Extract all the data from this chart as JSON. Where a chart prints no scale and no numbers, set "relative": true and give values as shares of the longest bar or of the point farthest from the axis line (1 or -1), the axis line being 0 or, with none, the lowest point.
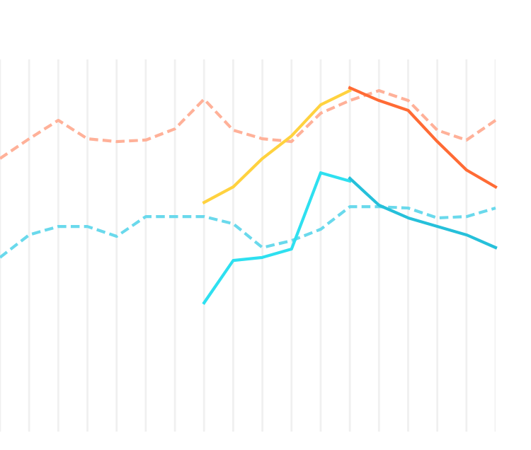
{
  "chart_data": {
    "type": "line",
    "relative": true,
    "grid": "x",
    "marker": "none",
    "categories": [
      null,
      null,
      null,
      null,
      null,
      null,
      null,
      null,
      null,
      null,
      null,
      null,
      null,
      null,
      null,
      null,
      null,
      null
    ],
    "series": [
      {
        "color": "#ffb199",
        "line_style": "dashed",
        "values": [
          0.671,
          0.763,
          0.849,
          0.763,
          0.75,
          0.757,
          0.809,
          0.947,
          0.803,
          0.763,
          0.75,
          0.882,
          0.941,
          0.987,
          0.941,
          0.803,
          0.757,
          0.849
        ]
      },
      {
        "color": "#6ad9ec",
        "line_style": "dashed",
        "values": [
          0.211,
          0.316,
          0.355,
          0.355,
          0.309,
          0.401,
          0.401,
          0.401,
          0.368,
          0.257,
          0.289,
          0.342,
          0.447,
          0.447,
          0.441,
          0.395,
          0.401,
          0.441
        ]
      },
      {
        "color": "#ffd23f",
        "line_style": "solid",
        "values": [
          null,
          null,
          null,
          null,
          null,
          null,
          null,
          0.467,
          0.539,
          0.671,
          0.776,
          0.921,
          0.987,
          null,
          null,
          null,
          null,
          null
        ]
      },
      {
        "color": "#ff6b35",
        "line_style": "solid",
        "values": [
          null,
          null,
          null,
          null,
          null,
          null,
          null,
          null,
          null,
          null,
          null,
          null,
          1.0,
          0.941,
          0.895,
          0.75,
          0.618,
          0.539
        ]
      },
      {
        "color": "#2ee0f0",
        "line_style": "solid",
        "values": [
          null,
          null,
          null,
          null,
          null,
          null,
          null,
          0.0,
          0.197,
          0.211,
          0.25,
          0.605,
          0.566,
          null,
          null,
          null,
          null,
          null
        ]
      },
      {
        "color": "#26c0da",
        "line_style": "solid",
        "values": [
          null,
          null,
          null,
          null,
          null,
          null,
          null,
          null,
          null,
          null,
          null,
          null,
          0.579,
          0.454,
          0.395,
          0.355,
          0.316,
          0.257
        ]
      }
    ]
  }
}
